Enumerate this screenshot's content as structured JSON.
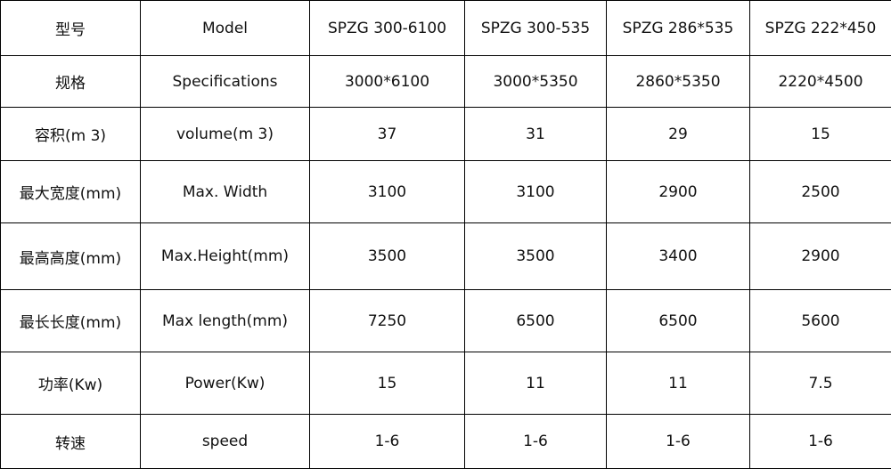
{
  "table": {
    "rows": [
      [
        "型号",
        "Model",
        "SPZG 300-6100",
        "SPZG 300-535",
        "SPZG 286*535",
        "SPZG 222*450"
      ],
      [
        "规格",
        "Specifications",
        "3000*6100",
        "3000*5350",
        "2860*5350",
        "2220*4500"
      ],
      [
        "容积(m 3)",
        "volume(m 3)",
        "37",
        "31",
        "29",
        "15"
      ],
      [
        "最大宽度(mm)",
        "Max. Width",
        "3100",
        "3100",
        "2900",
        "2500"
      ],
      [
        "最高高度(mm)",
        "Max.Height(mm)",
        "3500",
        "3500",
        "3400",
        "2900"
      ],
      [
        "最长长度(mm)",
        "Max length(mm)",
        "7250",
        "6500",
        "6500",
        "5600"
      ],
      [
        "功率(Kw)",
        "Power(Kw)",
        "15",
        "11",
        "11",
        "7.5"
      ],
      [
        "转速",
        "speed",
        "1-6",
        "1-6",
        "1-6",
        "1-6"
      ]
    ]
  }
}
